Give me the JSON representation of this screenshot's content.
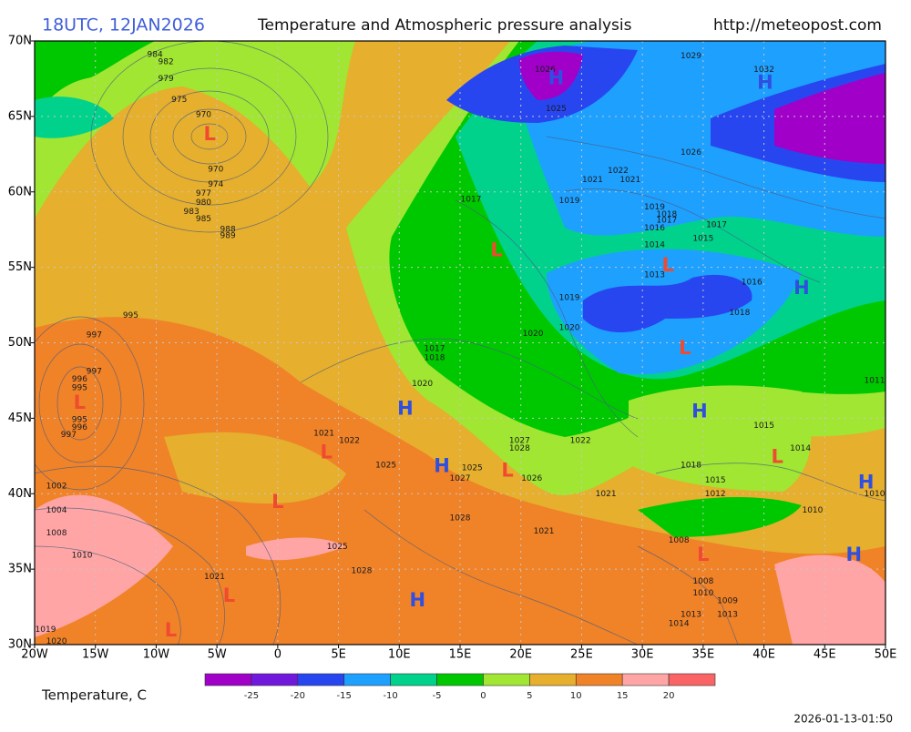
{
  "header": {
    "time": "18UTC, 12JAN2026",
    "title": "Temperature and Atmospheric pressure analysis",
    "url": "http://meteopost.com"
  },
  "map": {
    "lonlim": [
      -20,
      50
    ],
    "latlim": [
      30,
      70
    ],
    "lonticks": [
      {
        "value": -20,
        "label": "20W"
      },
      {
        "value": -15,
        "label": "15W"
      },
      {
        "value": -10,
        "label": "10W"
      },
      {
        "value": -5,
        "label": "5W"
      },
      0,
      {
        "value": 5,
        "label": "5E"
      },
      {
        "value": 10,
        "label": "10E"
      },
      {
        "value": 15,
        "label": "15E"
      },
      {
        "value": 20,
        "label": "20E"
      },
      {
        "value": 25,
        "label": "25E"
      },
      {
        "value": 30,
        "label": "30E"
      },
      {
        "value": 35,
        "label": "35E"
      },
      {
        "value": 40,
        "label": "40E"
      },
      {
        "value": 45,
        "label": "45E"
      },
      {
        "value": 50,
        "label": "50E"
      }
    ],
    "latticks": [
      {
        "value": 30,
        "label": "30N"
      },
      {
        "value": 35,
        "label": "35N"
      },
      {
        "value": 40,
        "label": "40N"
      },
      {
        "value": 45,
        "label": "45N"
      },
      {
        "value": 50,
        "label": "50N"
      },
      {
        "value": 55,
        "label": "55N"
      },
      {
        "value": 60,
        "label": "60N"
      },
      {
        "value": 65,
        "label": "65N"
      },
      {
        "value": 70,
        "label": "70N"
      }
    ],
    "grid": true,
    "center_colors": {
      "H": "#2f4fe0",
      "L": "#f04a30"
    },
    "centers": [
      {
        "label": "L",
        "lon": -5.6,
        "lat": 63.8
      },
      {
        "label": "L",
        "lon": -16.3,
        "lat": 46.0
      },
      {
        "label": "L",
        "lon": 18.0,
        "lat": 56.1
      },
      {
        "label": "L",
        "lon": 32.1,
        "lat": 55.1
      },
      {
        "label": "L",
        "lon": 33.5,
        "lat": 49.6
      },
      {
        "label": "L",
        "lon": 4.0,
        "lat": 42.7
      },
      {
        "label": "L",
        "lon": 0.0,
        "lat": 39.4
      },
      {
        "label": "L",
        "lon": 18.9,
        "lat": 41.5
      },
      {
        "label": "L",
        "lon": 41.1,
        "lat": 42.4
      },
      {
        "label": "L",
        "lon": 35.0,
        "lat": 35.9
      },
      {
        "label": "L",
        "lon": -4.0,
        "lat": 33.2
      },
      {
        "label": "L",
        "lon": -8.8,
        "lat": 30.9
      },
      {
        "label": "H",
        "lon": 10.5,
        "lat": 45.6
      },
      {
        "label": "H",
        "lon": 13.5,
        "lat": 41.8
      },
      {
        "label": "H",
        "lon": 11.5,
        "lat": 32.9
      },
      {
        "label": "H",
        "lon": 34.7,
        "lat": 45.4
      },
      {
        "label": "H",
        "lon": 43.1,
        "lat": 53.6
      },
      {
        "label": "H",
        "lon": 40.1,
        "lat": 67.2
      },
      {
        "label": "H",
        "lon": 48.4,
        "lat": 40.7
      },
      {
        "label": "H",
        "lon": 47.4,
        "lat": 35.9
      },
      {
        "label": "H",
        "lon": 22.9,
        "lat": 67.5
      }
    ],
    "isobar_labels": [
      {
        "text": "984",
        "lon": -10.1,
        "lat": 69.1
      },
      {
        "text": "982",
        "lon": -9.2,
        "lat": 68.6
      },
      {
        "text": "979",
        "lon": -9.2,
        "lat": 67.5
      },
      {
        "text": "975",
        "lon": -8.1,
        "lat": 66.1
      },
      {
        "text": "970",
        "lon": -6.1,
        "lat": 65.1
      },
      {
        "text": "970",
        "lon": -5.1,
        "lat": 61.5
      },
      {
        "text": "974",
        "lon": -5.1,
        "lat": 60.5
      },
      {
        "text": "977",
        "lon": -6.1,
        "lat": 59.9
      },
      {
        "text": "980",
        "lon": -6.1,
        "lat": 59.3
      },
      {
        "text": "983",
        "lon": -7.1,
        "lat": 58.7
      },
      {
        "text": "985",
        "lon": -6.1,
        "lat": 58.2
      },
      {
        "text": "988",
        "lon": -4.1,
        "lat": 57.5
      },
      {
        "text": "989",
        "lon": -4.1,
        "lat": 57.1
      },
      {
        "text": "995",
        "lon": -12.1,
        "lat": 51.8
      },
      {
        "text": "997",
        "lon": -15.1,
        "lat": 50.5
      },
      {
        "text": "997",
        "lon": -15.1,
        "lat": 48.1
      },
      {
        "text": "996",
        "lon": -16.3,
        "lat": 47.6
      },
      {
        "text": "995",
        "lon": -16.3,
        "lat": 47.0
      },
      {
        "text": "995",
        "lon": -16.3,
        "lat": 44.9
      },
      {
        "text": "996",
        "lon": -16.3,
        "lat": 44.4
      },
      {
        "text": "997",
        "lon": -17.2,
        "lat": 43.9
      },
      {
        "text": "1002",
        "lon": -18.2,
        "lat": 40.5
      },
      {
        "text": "1004",
        "lon": -18.2,
        "lat": 38.9
      },
      {
        "text": "1008",
        "lon": -18.2,
        "lat": 37.4
      },
      {
        "text": "1010",
        "lon": -16.1,
        "lat": 35.9
      },
      {
        "text": "1019",
        "lon": -19.1,
        "lat": 31.0
      },
      {
        "text": "1020",
        "lon": -18.2,
        "lat": 30.2
      },
      {
        "text": "1021",
        "lon": -5.2,
        "lat": 34.5
      },
      {
        "text": "1025",
        "lon": 4.9,
        "lat": 36.5
      },
      {
        "text": "1028",
        "lon": 6.9,
        "lat": 34.9
      },
      {
        "text": "1021",
        "lon": 3.8,
        "lat": 44.0
      },
      {
        "text": "1022",
        "lon": 5.9,
        "lat": 43.5
      },
      {
        "text": "1025",
        "lon": 8.9,
        "lat": 41.9
      },
      {
        "text": "1025",
        "lon": 16.0,
        "lat": 41.7
      },
      {
        "text": "1027",
        "lon": 15.0,
        "lat": 41.0
      },
      {
        "text": "1028",
        "lon": 15.0,
        "lat": 38.4
      },
      {
        "text": "1027",
        "lon": 19.9,
        "lat": 43.5
      },
      {
        "text": "1028",
        "lon": 19.9,
        "lat": 43.0
      },
      {
        "text": "1026",
        "lon": 20.9,
        "lat": 41.0
      },
      {
        "text": "1022",
        "lon": 24.9,
        "lat": 43.5
      },
      {
        "text": "1021",
        "lon": 27.0,
        "lat": 40.0
      },
      {
        "text": "1021",
        "lon": 21.9,
        "lat": 37.5
      },
      {
        "text": "1020",
        "lon": 11.9,
        "lat": 47.3
      },
      {
        "text": "1017",
        "lon": 12.9,
        "lat": 49.6
      },
      {
        "text": "1018",
        "lon": 12.9,
        "lat": 49.0
      },
      {
        "text": "1020",
        "lon": 21.0,
        "lat": 50.6
      },
      {
        "text": "1020",
        "lon": 24.0,
        "lat": 51.0
      },
      {
        "text": "1019",
        "lon": 24.0,
        "lat": 53.0
      },
      {
        "text": "1017",
        "lon": 15.9,
        "lat": 59.5
      },
      {
        "text": "1019",
        "lon": 24.0,
        "lat": 59.4
      },
      {
        "text": "1021",
        "lon": 25.9,
        "lat": 60.8
      },
      {
        "text": "1022",
        "lon": 28.0,
        "lat": 61.4
      },
      {
        "text": "1021",
        "lon": 29.0,
        "lat": 60.8
      },
      {
        "text": "1025",
        "lon": 22.9,
        "lat": 65.5
      },
      {
        "text": "1026",
        "lon": 22.0,
        "lat": 68.1
      },
      {
        "text": "1029",
        "lon": 34.0,
        "lat": 69.0
      },
      {
        "text": "1032",
        "lon": 40.0,
        "lat": 68.1
      },
      {
        "text": "1026",
        "lon": 34.0,
        "lat": 62.6
      },
      {
        "text": "1019",
        "lon": 31.0,
        "lat": 59.0
      },
      {
        "text": "1018",
        "lon": 32.0,
        "lat": 58.5
      },
      {
        "text": "1017",
        "lon": 32.0,
        "lat": 58.1
      },
      {
        "text": "1016",
        "lon": 31.0,
        "lat": 57.6
      },
      {
        "text": "1017",
        "lon": 36.1,
        "lat": 57.8
      },
      {
        "text": "1015",
        "lon": 35.0,
        "lat": 56.9
      },
      {
        "text": "1014",
        "lon": 31.0,
        "lat": 56.5
      },
      {
        "text": "1013",
        "lon": 31.0,
        "lat": 54.5
      },
      {
        "text": "1016",
        "lon": 39.0,
        "lat": 54.0
      },
      {
        "text": "1018",
        "lon": 38.0,
        "lat": 52.0
      },
      {
        "text": "1011",
        "lon": 49.1,
        "lat": 47.5
      },
      {
        "text": "1015",
        "lon": 40.0,
        "lat": 44.5
      },
      {
        "text": "1014",
        "lon": 43.0,
        "lat": 43.0
      },
      {
        "text": "1018",
        "lon": 34.0,
        "lat": 41.9
      },
      {
        "text": "1015",
        "lon": 36.0,
        "lat": 40.9
      },
      {
        "text": "1012",
        "lon": 36.0,
        "lat": 40.0
      },
      {
        "text": "1010",
        "lon": 44.0,
        "lat": 38.9
      },
      {
        "text": "1010",
        "lon": 49.1,
        "lat": 40.0
      },
      {
        "text": "1008",
        "lon": 33.0,
        "lat": 36.9
      },
      {
        "text": "1008",
        "lon": 35.0,
        "lat": 34.2
      },
      {
        "text": "1010",
        "lon": 35.0,
        "lat": 33.4
      },
      {
        "text": "1009",
        "lon": 37.0,
        "lat": 32.9
      },
      {
        "text": "1013",
        "lon": 34.0,
        "lat": 32.0
      },
      {
        "text": "1013",
        "lon": 37.0,
        "lat": 32.0
      },
      {
        "text": "1014",
        "lon": 33.0,
        "lat": 31.4
      }
    ]
  },
  "colorbar": {
    "title": "Temperature, C",
    "bounds": [
      -30,
      -25,
      -20,
      -15,
      -10,
      -5,
      0,
      5,
      10,
      15,
      20,
      25
    ],
    "colors": [
      "#a000c8",
      "#7018dc",
      "#2846f0",
      "#1ea0ff",
      "#00d28c",
      "#00c800",
      "#a0e632",
      "#e6af2d",
      "#f08228",
      "#ffa5a5",
      "#fa6464"
    ],
    "ticks": [
      -25,
      -20,
      -15,
      -10,
      -5,
      0,
      5,
      10,
      15,
      20
    ]
  },
  "footer": {
    "timestamp": "2026-01-13-01:50"
  }
}
